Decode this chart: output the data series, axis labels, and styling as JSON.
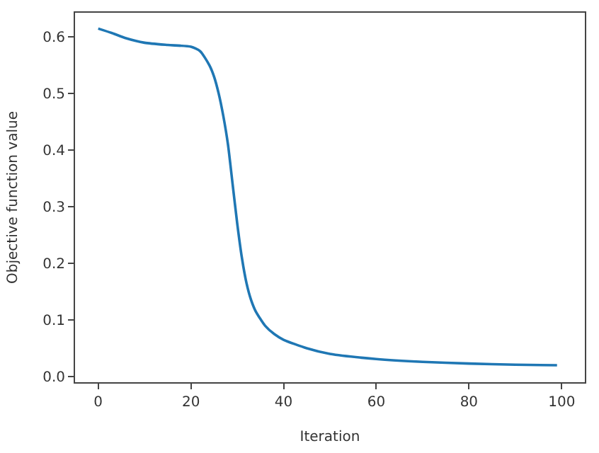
{
  "chart_data": {
    "type": "line",
    "xlabel": "Iteration",
    "ylabel": "Objective function value",
    "x": [
      0,
      3,
      6,
      10,
      15,
      20,
      22,
      24,
      25,
      26,
      27,
      28,
      29,
      30,
      31,
      32,
      33,
      34,
      36,
      38,
      40,
      45,
      50,
      60,
      70,
      80,
      90,
      99
    ],
    "series": [
      {
        "color": "#1f77b4",
        "values": [
          0.615,
          0.607,
          0.598,
          0.59,
          0.586,
          0.583,
          0.575,
          0.55,
          0.53,
          0.5,
          0.46,
          0.41,
          0.34,
          0.27,
          0.21,
          0.165,
          0.135,
          0.115,
          0.09,
          0.075,
          0.065,
          0.05,
          0.04,
          0.031,
          0.026,
          0.023,
          0.021,
          0.02
        ]
      }
    ],
    "xlim": [
      -5,
      105
    ],
    "ylim": [
      -0.01,
      0.643
    ],
    "xticks": [
      0,
      20,
      40,
      60,
      80,
      100
    ],
    "yticks": [
      {
        "value": 0,
        "label": "0.0"
      },
      0.1,
      0.2,
      0.3,
      0.4,
      0.5,
      0.6
    ],
    "legend": false,
    "marker": "none",
    "line_style": "solid"
  }
}
